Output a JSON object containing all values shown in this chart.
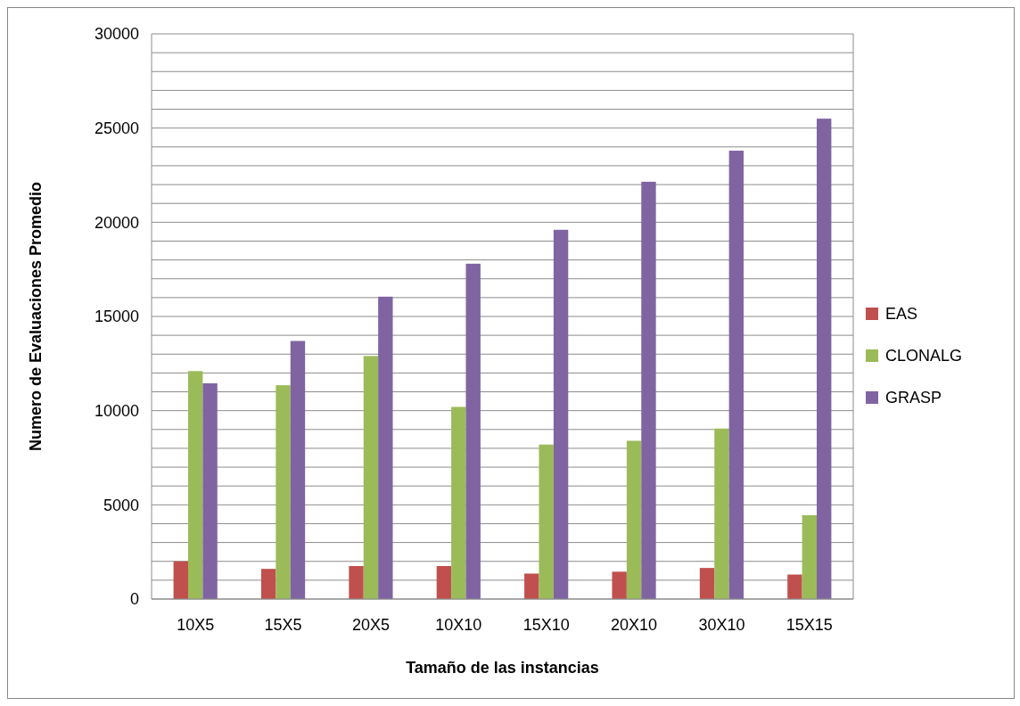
{
  "chart_data": {
    "type": "bar",
    "xlabel": "Tamaño de las instancias",
    "ylabel": "Numero de Evaluaciones Promedio",
    "categories": [
      "10X5",
      "15X5",
      "20X5",
      "10X10",
      "15X10",
      "20X10",
      "30X10",
      "15X15"
    ],
    "series": [
      {
        "name": "EAS",
        "color": "#c0504d",
        "values": [
          2000,
          1600,
          1750,
          1750,
          1350,
          1450,
          1650,
          1300
        ]
      },
      {
        "name": "CLONALG",
        "color": "#9bbb59",
        "values": [
          12100,
          11350,
          12900,
          10200,
          8200,
          8400,
          9050,
          4450
        ]
      },
      {
        "name": "GRASP",
        "color": "#8064a2",
        "values": [
          11450,
          13700,
          16050,
          17800,
          19600,
          22150,
          23800,
          25500
        ]
      }
    ],
    "ylim": [
      0,
      30000
    ],
    "yticks": [
      0,
      {
        "value": 1000,
        "label": null
      },
      {
        "value": 2000,
        "label": null
      },
      {
        "value": 3000,
        "label": null
      },
      {
        "value": 4000,
        "label": null
      },
      5000,
      {
        "value": 6000,
        "label": null
      },
      {
        "value": 7000,
        "label": null
      },
      {
        "value": 8000,
        "label": null
      },
      {
        "value": 9000,
        "label": null
      },
      10000,
      {
        "value": 11000,
        "label": null
      },
      {
        "value": 12000,
        "label": null
      },
      {
        "value": 13000,
        "label": null
      },
      {
        "value": 14000,
        "label": null
      },
      15000,
      {
        "value": 16000,
        "label": null
      },
      {
        "value": 17000,
        "label": null
      },
      {
        "value": 18000,
        "label": null
      },
      {
        "value": 19000,
        "label": null
      },
      20000,
      {
        "value": 21000,
        "label": null
      },
      {
        "value": 22000,
        "label": null
      },
      {
        "value": 23000,
        "label": null
      },
      {
        "value": 24000,
        "label": null
      },
      25000,
      {
        "value": 26000,
        "label": null
      },
      {
        "value": 27000,
        "label": null
      },
      {
        "value": 28000,
        "label": null
      },
      {
        "value": 29000,
        "label": null
      },
      30000
    ],
    "grid": "y",
    "legend": "right"
  }
}
